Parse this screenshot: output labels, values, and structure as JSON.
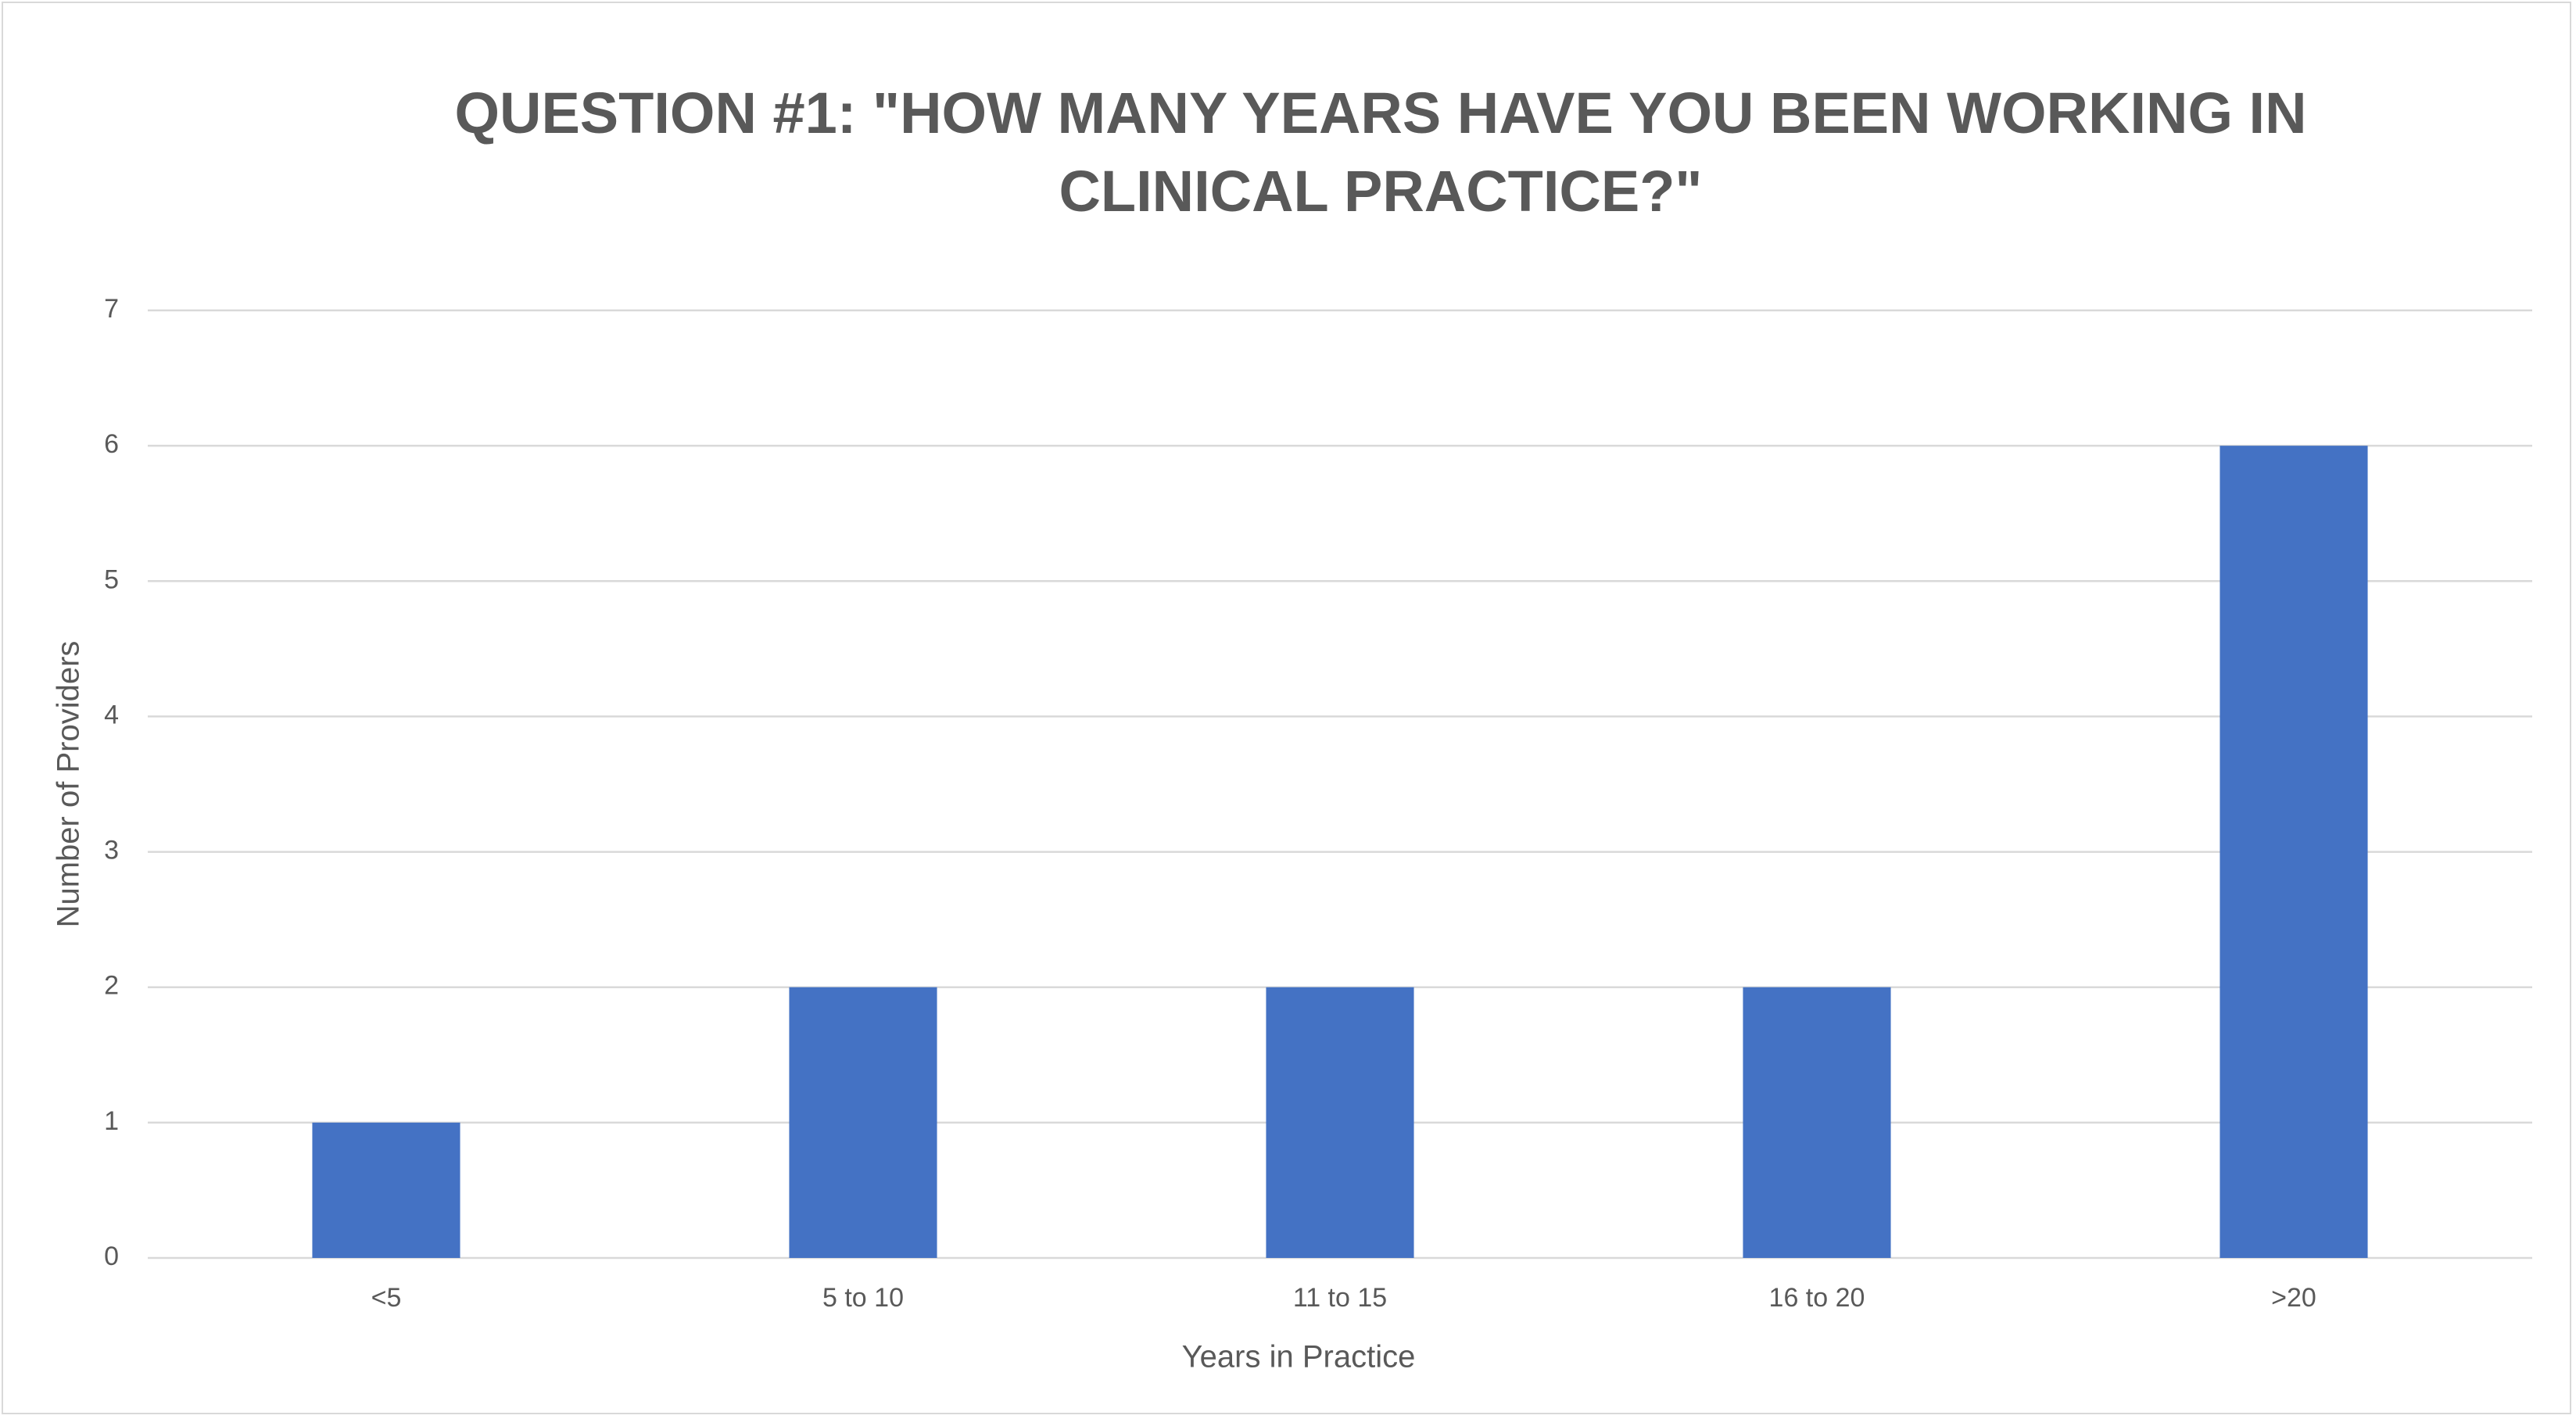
{
  "chart_data": {
    "type": "bar",
    "title": "QUESTION #1: \"HOW MANY YEARS HAVE YOU BEEN WORKING IN CLINICAL PRACTICE?\"",
    "x_label": "Years in Practice",
    "y_label": "Number of Providers",
    "categories": [
      "<5",
      "5 to 10",
      "11 to 15",
      "16 to 20",
      ">20"
    ],
    "values": [
      1,
      2,
      2,
      2,
      6
    ],
    "color": "#4472c4",
    "ylim": [
      0,
      7
    ],
    "yticks": [
      0,
      1,
      2,
      3,
      4,
      5,
      6,
      7
    ],
    "grid": true
  }
}
